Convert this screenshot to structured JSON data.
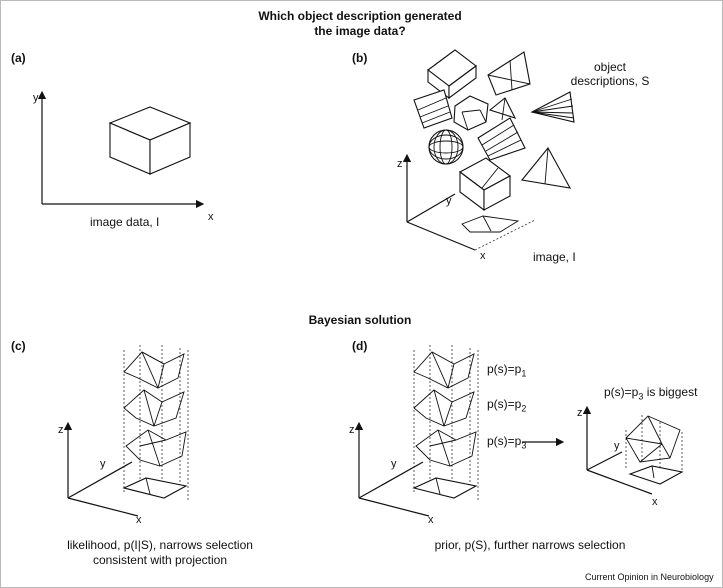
{
  "title": {
    "line1": "Which object description generated",
    "line2": "the image data?"
  },
  "panels": {
    "a": {
      "label": "(a)",
      "caption": "image data, I",
      "axis_y": "y",
      "axis_x": "x"
    },
    "b": {
      "label": "(b)",
      "objects_line1": "object",
      "objects_line2": "descriptions, S",
      "image_label": "image, I",
      "axis_z": "z",
      "axis_y": "y",
      "axis_x": "x"
    },
    "bayes_heading": "Bayesian solution",
    "c": {
      "label": "(c)",
      "caption_line1": "likelihood, p(I|S), narrows selection",
      "caption_line2": "consistent with projection",
      "axis_z": "z",
      "axis_y": "y",
      "axis_x": "x"
    },
    "d": {
      "label": "(d)",
      "p1": "p(s)=p",
      "p1_sub": "1",
      "p2": "p(s)=p",
      "p2_sub": "2",
      "p3": "p(s)=p",
      "p3_sub": "3",
      "biggest_pre": "p(s)=p",
      "biggest_sub": "3",
      "biggest_post": " is biggest",
      "caption": "prior, p(S), further narrows selection",
      "axis_z": "z",
      "axis_y": "y",
      "axis_x": "x",
      "axis_z2": "z",
      "axis_y2": "y",
      "axis_x2": "x"
    }
  },
  "credit": "Current Opinion in Neurobiology"
}
